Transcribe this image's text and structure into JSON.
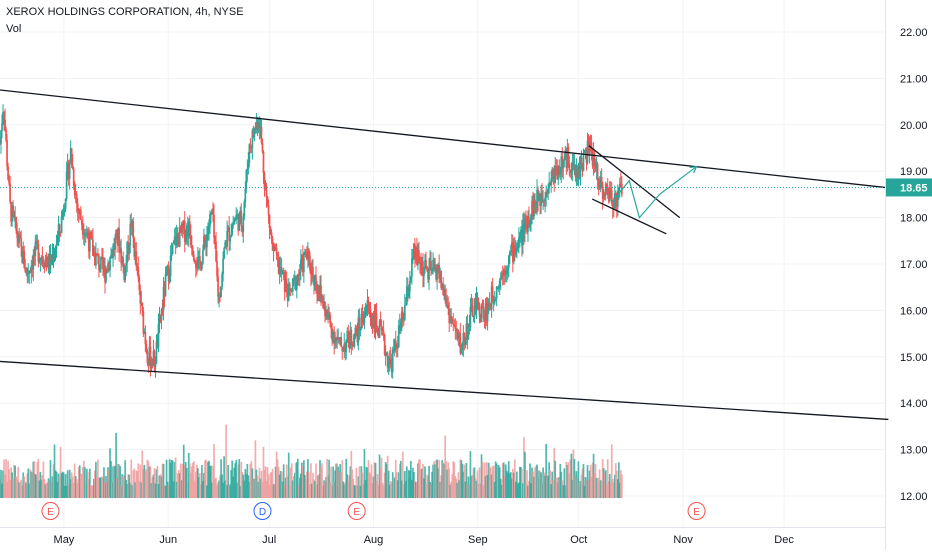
{
  "title": "XEROX HOLDINGS CORPORATION, 4h, NYSE",
  "volume_label": "Vol",
  "colors": {
    "up": "#26a69a",
    "down": "#ef5350",
    "up_volume": "#26a69a",
    "down_volume": "#ef9a9a",
    "trendline": "#131722",
    "projection": "#26a69a",
    "price_line": "#26a69a",
    "grid": "#f0f3fa",
    "event_marker": "#ef5350",
    "dividend_marker": "#2962ff"
  },
  "chart_data": {
    "type": "candlestick",
    "title": "XEROX HOLDINGS CORPORATION, 4h, NYSE",
    "x_tick_labels": [
      "May",
      "Jun",
      "Jul",
      "Aug",
      "Sep",
      "Oct",
      "Nov",
      "Dec"
    ],
    "y_tick_labels": [
      "22.00",
      "21.00",
      "20.00",
      "19.00",
      "18.00",
      "17.00",
      "16.00",
      "15.00",
      "14.00",
      "13.00",
      "12.00"
    ],
    "y_range": [
      11.5,
      22.4
    ],
    "x_range": [
      "2021-04-12",
      "2021-12-31"
    ],
    "grid": true,
    "last_price": 18.65,
    "last_price_label": "18.65",
    "events": [
      {
        "date": "2021-04-27",
        "label": "E",
        "kind": "earnings"
      },
      {
        "date": "2021-06-29",
        "label": "D",
        "kind": "dividend"
      },
      {
        "date": "2021-07-27",
        "label": "E",
        "kind": "earnings"
      },
      {
        "date": "2021-11-05",
        "label": "E",
        "kind": "earnings"
      }
    ],
    "price_keypoints": [
      [
        "2021-04-12",
        19.6
      ],
      [
        "2021-04-13",
        20.5
      ],
      [
        "2021-04-15",
        18.2
      ],
      [
        "2021-04-20",
        16.8
      ],
      [
        "2021-04-23",
        17.3
      ],
      [
        "2021-04-27",
        17.0
      ],
      [
        "2021-04-30",
        17.8
      ],
      [
        "2021-05-03",
        19.4
      ],
      [
        "2021-05-05",
        18.2
      ],
      [
        "2021-05-10",
        17.2
      ],
      [
        "2021-05-13",
        16.8
      ],
      [
        "2021-05-17",
        17.6
      ],
      [
        "2021-05-19",
        16.8
      ],
      [
        "2021-05-21",
        17.9
      ],
      [
        "2021-05-24",
        16.0
      ],
      [
        "2021-05-26",
        15.0
      ],
      [
        "2021-05-28",
        14.9
      ],
      [
        "2021-05-31",
        16.5
      ],
      [
        "2021-06-03",
        17.5
      ],
      [
        "2021-06-07",
        17.8
      ],
      [
        "2021-06-10",
        16.9
      ],
      [
        "2021-06-14",
        18.1
      ],
      [
        "2021-06-16",
        16.2
      ],
      [
        "2021-06-18",
        17.5
      ],
      [
        "2021-06-21",
        18.0
      ],
      [
        "2021-06-23",
        17.9
      ],
      [
        "2021-06-25",
        19.5
      ],
      [
        "2021-06-28",
        20.2
      ],
      [
        "2021-06-30",
        18.5
      ],
      [
        "2021-07-02",
        17.3
      ],
      [
        "2021-07-07",
        16.3
      ],
      [
        "2021-07-12",
        17.2
      ],
      [
        "2021-07-15",
        16.6
      ],
      [
        "2021-07-19",
        15.7
      ],
      [
        "2021-07-22",
        15.2
      ],
      [
        "2021-07-27",
        15.5
      ],
      [
        "2021-07-30",
        16.1
      ],
      [
        "2021-08-03",
        15.5
      ],
      [
        "2021-08-06",
        14.8
      ],
      [
        "2021-08-10",
        15.9
      ],
      [
        "2021-08-13",
        17.2
      ],
      [
        "2021-08-17",
        16.8
      ],
      [
        "2021-08-20",
        16.9
      ],
      [
        "2021-08-24",
        15.8
      ],
      [
        "2021-08-27",
        15.2
      ],
      [
        "2021-08-31",
        16.1
      ],
      [
        "2021-09-03",
        15.9
      ],
      [
        "2021-09-07",
        16.6
      ],
      [
        "2021-09-10",
        17.1
      ],
      [
        "2021-09-14",
        17.6
      ],
      [
        "2021-09-17",
        18.2
      ],
      [
        "2021-09-21",
        18.6
      ],
      [
        "2021-09-24",
        19.0
      ],
      [
        "2021-09-28",
        19.3
      ],
      [
        "2021-09-30",
        18.9
      ],
      [
        "2021-10-04",
        19.5
      ],
      [
        "2021-10-06",
        19.1
      ],
      [
        "2021-10-08",
        18.6
      ],
      [
        "2021-10-12",
        18.4
      ],
      [
        "2021-10-14",
        18.65
      ]
    ],
    "trendlines": [
      {
        "name": "upper-channel",
        "from": [
          "2021-04-12",
          20.75
        ],
        "to": [
          "2021-12-31",
          18.65
        ]
      },
      {
        "name": "lower-channel",
        "from": [
          "2021-04-12",
          14.9
        ],
        "to": [
          "2022-01-01",
          13.65
        ]
      },
      {
        "name": "wedge-upper",
        "from": [
          "2021-10-04",
          19.55
        ],
        "to": [
          "2021-10-31",
          18.0
        ]
      },
      {
        "name": "wedge-lower",
        "from": [
          "2021-10-05",
          18.4
        ],
        "to": [
          "2021-10-27",
          17.65
        ]
      }
    ],
    "projection": [
      [
        "2021-10-11",
        18.35
      ],
      [
        "2021-10-16",
        18.8
      ],
      [
        "2021-10-19",
        18.0
      ],
      [
        "2021-10-25",
        18.5
      ],
      [
        "2021-11-05",
        19.1
      ]
    ]
  }
}
